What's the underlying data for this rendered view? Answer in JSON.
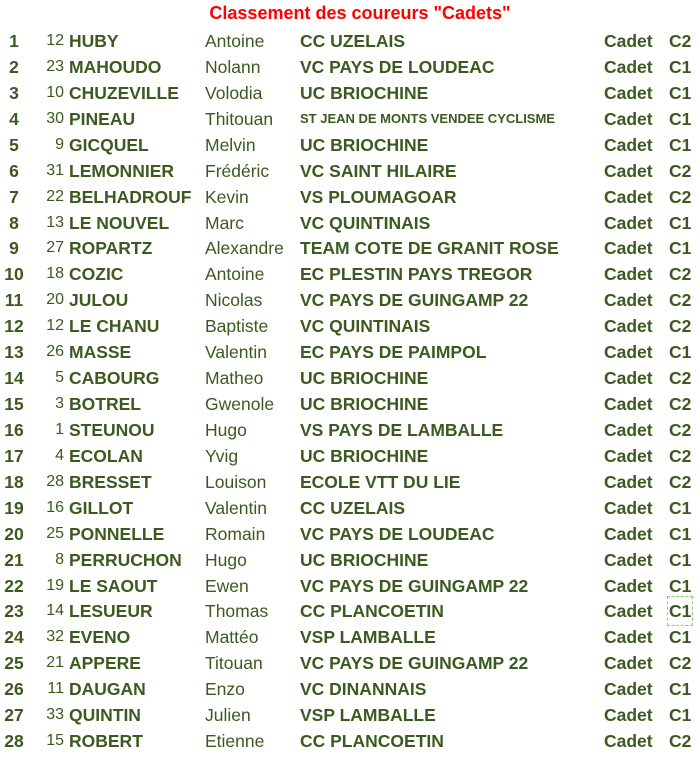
{
  "title": "Classement des coureurs \"Cadets\"",
  "colors": {
    "text": "#3b5a1f",
    "title": "#ff0000",
    "selection": "#7fd07f"
  },
  "selected_cell": {
    "row": 23,
    "column": "category"
  },
  "rows": [
    {
      "rank": "1",
      "bib": "12",
      "last": "HUBY",
      "first": "Antoine",
      "club": "CC UZELAIS",
      "cat": "Cadet",
      "sub": "C2"
    },
    {
      "rank": "2",
      "bib": "23",
      "last": "MAHOUDO",
      "first": "Nolann",
      "club": "VC PAYS DE LOUDEAC",
      "cat": "Cadet",
      "sub": "C1"
    },
    {
      "rank": "3",
      "bib": "10",
      "last": "CHUZEVILLE",
      "first": "Volodia",
      "club": "UC BRIOCHINE",
      "cat": "Cadet",
      "sub": "C1"
    },
    {
      "rank": "4",
      "bib": "30",
      "last": "PINEAU",
      "first": "Thitouan",
      "club": "ST JEAN DE MONTS VENDEE CYCLISME",
      "cat": "Cadet",
      "sub": "C1"
    },
    {
      "rank": "5",
      "bib": "9",
      "last": "GICQUEL",
      "first": "Melvin",
      "club": "UC BRIOCHINE",
      "cat": "Cadet",
      "sub": "C1"
    },
    {
      "rank": "6",
      "bib": "31",
      "last": "LEMONNIER",
      "first": "Frédéric",
      "club": "VC SAINT HILAIRE",
      "cat": "Cadet",
      "sub": "C2"
    },
    {
      "rank": "7",
      "bib": "22",
      "last": "BELHADROUF",
      "first": "Kevin",
      "club": "VS PLOUMAGOAR",
      "cat": "Cadet",
      "sub": "C2"
    },
    {
      "rank": "8",
      "bib": "13",
      "last": "LE NOUVEL",
      "first": "Marc",
      "club": "VC QUINTINAIS",
      "cat": "Cadet",
      "sub": "C1"
    },
    {
      "rank": "9",
      "bib": "27",
      "last": "ROPARTZ",
      "first": "Alexandre",
      "club": "TEAM COTE DE GRANIT ROSE",
      "cat": "Cadet",
      "sub": "C1"
    },
    {
      "rank": "10",
      "bib": "18",
      "last": "COZIC",
      "first": "Antoine",
      "club": "EC PLESTIN PAYS TREGOR",
      "cat": "Cadet",
      "sub": "C2"
    },
    {
      "rank": "11",
      "bib": "20",
      "last": "JULOU",
      "first": "Nicolas",
      "club": "VC PAYS DE GUINGAMP 22",
      "cat": "Cadet",
      "sub": "C2"
    },
    {
      "rank": "12",
      "bib": "12",
      "last": "LE CHANU",
      "first": "Baptiste",
      "club": "VC QUINTINAIS",
      "cat": "Cadet",
      "sub": "C2"
    },
    {
      "rank": "13",
      "bib": "26",
      "last": "MASSE",
      "first": "Valentin",
      "club": "EC PAYS DE PAIMPOL",
      "cat": "Cadet",
      "sub": "C1"
    },
    {
      "rank": "14",
      "bib": "5",
      "last": "CABOURG",
      "first": "Matheo",
      "club": "UC BRIOCHINE",
      "cat": "Cadet",
      "sub": "C2"
    },
    {
      "rank": "15",
      "bib": "3",
      "last": "BOTREL",
      "first": "Gwenole",
      "club": "UC BRIOCHINE",
      "cat": "Cadet",
      "sub": "C2"
    },
    {
      "rank": "16",
      "bib": "1",
      "last": "STEUNOU",
      "first": "Hugo",
      "club": "VS PAYS DE LAMBALLE",
      "cat": "Cadet",
      "sub": "C2"
    },
    {
      "rank": "17",
      "bib": "4",
      "last": "ECOLAN",
      "first": "Yvig",
      "club": "UC BRIOCHINE",
      "cat": "Cadet",
      "sub": "C2"
    },
    {
      "rank": "18",
      "bib": "28",
      "last": "BRESSET",
      "first": "Louison",
      "club": "ECOLE VTT DU LIE",
      "cat": "Cadet",
      "sub": "C2"
    },
    {
      "rank": "19",
      "bib": "16",
      "last": "GILLOT",
      "first": "Valentin",
      "club": "CC UZELAIS",
      "cat": "Cadet",
      "sub": "C1"
    },
    {
      "rank": "20",
      "bib": "25",
      "last": "PONNELLE",
      "first": "Romain",
      "club": "VC PAYS DE LOUDEAC",
      "cat": "Cadet",
      "sub": "C1"
    },
    {
      "rank": "21",
      "bib": "8",
      "last": "PERRUCHON",
      "first": "Hugo",
      "club": "UC BRIOCHINE",
      "cat": "Cadet",
      "sub": "C1"
    },
    {
      "rank": "22",
      "bib": "19",
      "last": "LE SAOUT",
      "first": "Ewen",
      "club": "VC PAYS DE GUINGAMP 22",
      "cat": "Cadet",
      "sub": "C1"
    },
    {
      "rank": "23",
      "bib": "14",
      "last": "LESUEUR",
      "first": "Thomas",
      "club": "CC PLANCOETIN",
      "cat": "Cadet",
      "sub": "C1"
    },
    {
      "rank": "24",
      "bib": "32",
      "last": "EVENO",
      "first": "Mattéo",
      "club": "VSP LAMBALLE",
      "cat": "Cadet",
      "sub": "C1"
    },
    {
      "rank": "25",
      "bib": "21",
      "last": "APPERE",
      "first": "Titouan",
      "club": "VC PAYS DE GUINGAMP 22",
      "cat": "Cadet",
      "sub": "C2"
    },
    {
      "rank": "26",
      "bib": "11",
      "last": "DAUGAN",
      "first": "Enzo",
      "club": "VC DINANNAIS",
      "cat": "Cadet",
      "sub": "C1"
    },
    {
      "rank": "27",
      "bib": "33",
      "last": "QUINTIN",
      "first": "Julien",
      "club": "VSP LAMBALLE",
      "cat": "Cadet",
      "sub": "C1"
    },
    {
      "rank": "28",
      "bib": "15",
      "last": "ROBERT",
      "first": "Etienne",
      "club": "CC PLANCOETIN",
      "cat": "Cadet",
      "sub": "C2"
    }
  ]
}
